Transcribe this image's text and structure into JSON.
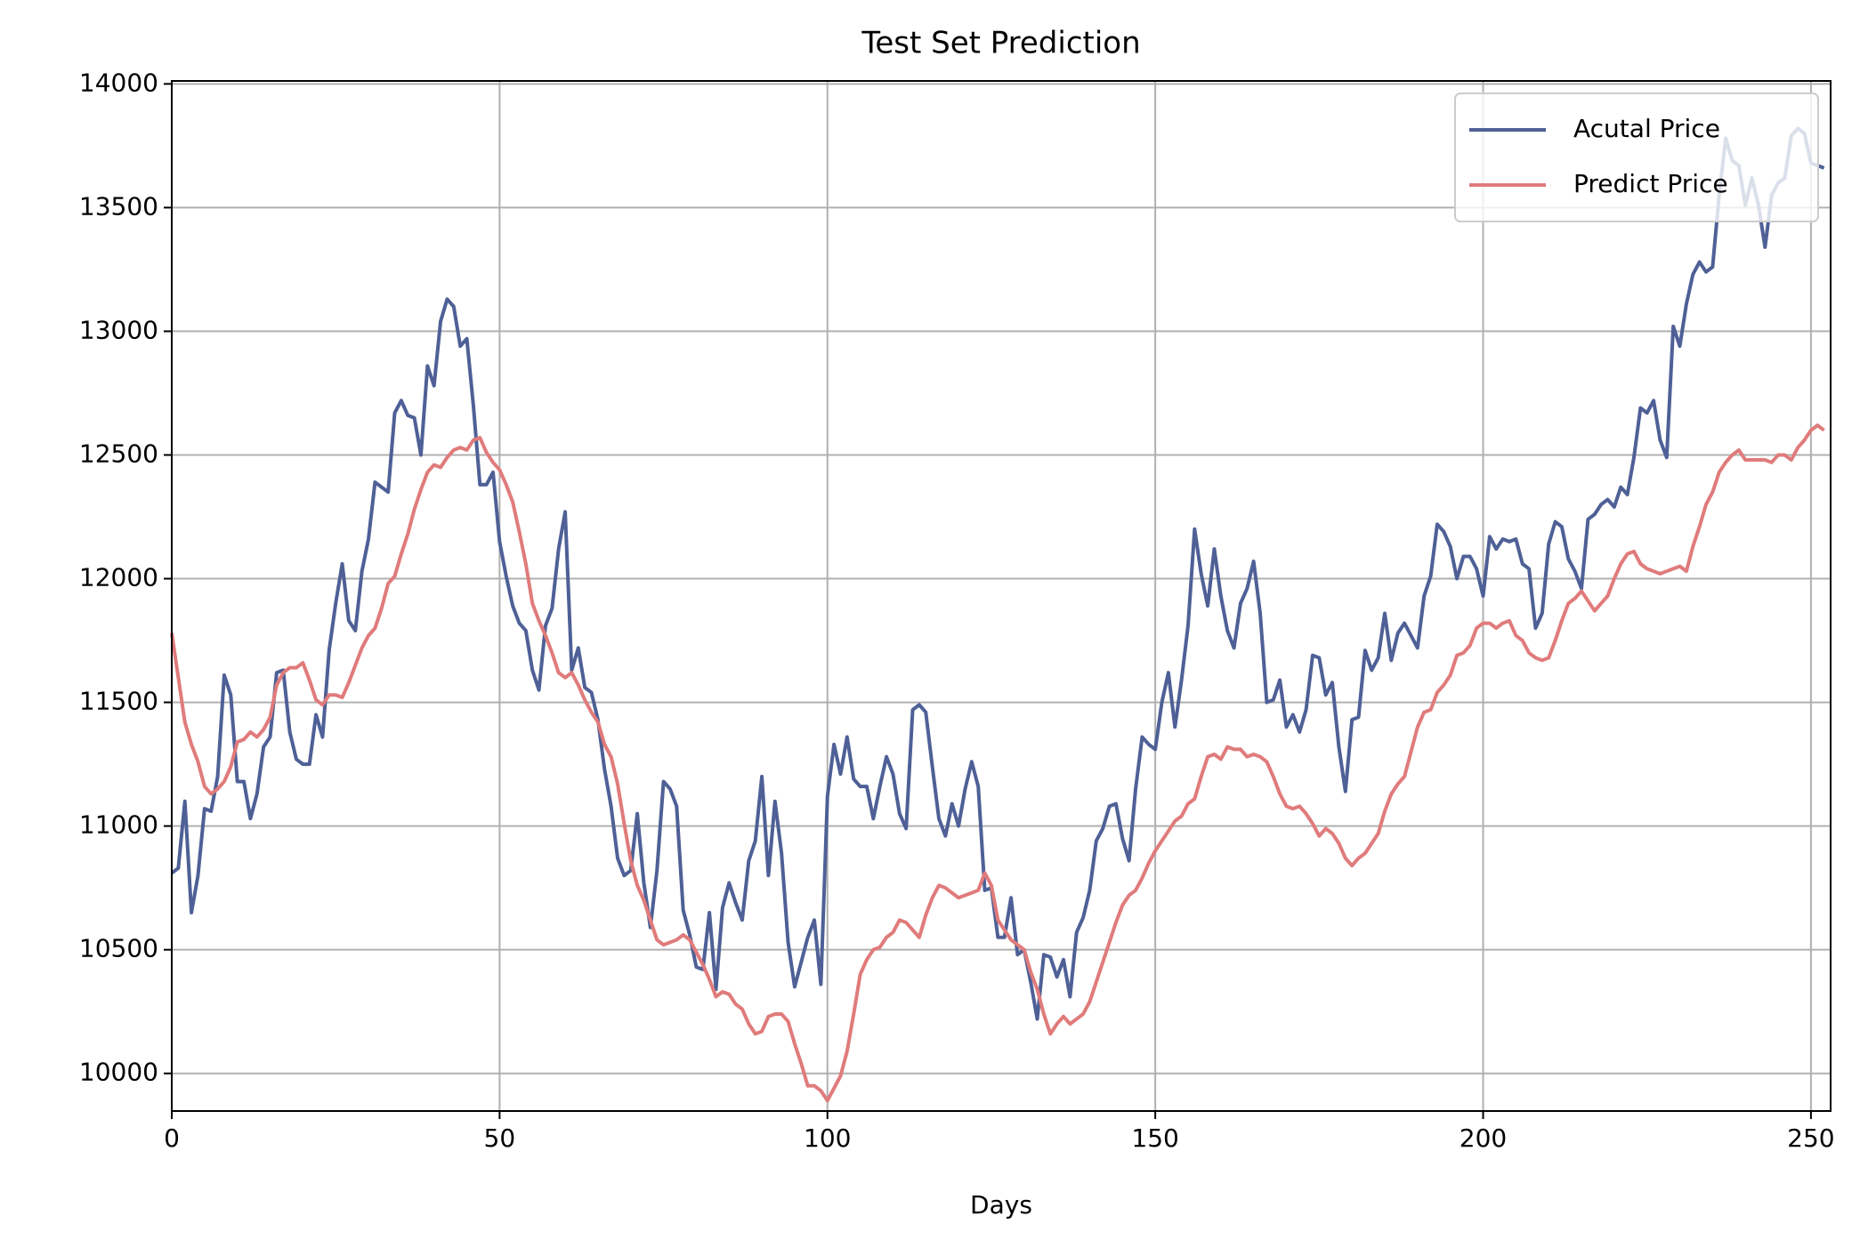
{
  "chart_data": {
    "type": "line",
    "title": "Test Set Prediction",
    "x_label": "Days",
    "xlim": [
      0,
      253
    ],
    "xticks": [
      0,
      50,
      100,
      150,
      200,
      250
    ],
    "ylim": [
      9848,
      14012
    ],
    "yticks": [
      10000,
      10500,
      11000,
      11500,
      12000,
      12500,
      13000,
      13500,
      14000
    ],
    "grid": true,
    "legend": "upper right",
    "series": [
      {
        "name": "Acutal Price",
        "color": "#4e6096",
        "values": [
          10810,
          10830,
          11100,
          10650,
          10800,
          11070,
          11060,
          11200,
          11610,
          11530,
          11180,
          11180,
          11030,
          11130,
          11320,
          11360,
          11620,
          11630,
          11380,
          11270,
          11250,
          11250,
          11450,
          11360,
          11710,
          11900,
          12060,
          11830,
          11790,
          12030,
          12160,
          12390,
          12370,
          12350,
          12670,
          12720,
          12660,
          12650,
          12500,
          12860,
          12780,
          13040,
          13130,
          13100,
          12940,
          12970,
          12700,
          12380,
          12380,
          12430,
          12150,
          12010,
          11890,
          11820,
          11790,
          11630,
          11550,
          11810,
          11880,
          12120,
          12270,
          11630,
          11720,
          11560,
          11540,
          11430,
          11230,
          11080,
          10870,
          10800,
          10820,
          11050,
          10770,
          10590,
          10820,
          11180,
          11150,
          11080,
          10660,
          10560,
          10430,
          10420,
          10650,
          10340,
          10670,
          10770,
          10690,
          10620,
          10860,
          10940,
          11200,
          10800,
          11100,
          10890,
          10530,
          10350,
          10450,
          10550,
          10620,
          10360,
          11120,
          11330,
          11210,
          11360,
          11190,
          11160,
          11160,
          11030,
          11160,
          11280,
          11210,
          11050,
          10990,
          11470,
          11490,
          11460,
          11240,
          11030,
          10960,
          11090,
          11000,
          11150,
          11260,
          11160,
          10740,
          10750,
          10550,
          10550,
          10710,
          10480,
          10500,
          10370,
          10220,
          10480,
          10470,
          10390,
          10460,
          10310,
          10570,
          10630,
          10740,
          10940,
          10990,
          11080,
          11090,
          10950,
          10860,
          11150,
          11360,
          11330,
          11310,
          11500,
          11620,
          11400,
          11590,
          11810,
          12200,
          12020,
          11890,
          12120,
          11930,
          11790,
          11720,
          11900,
          11960,
          12070,
          11860,
          11500,
          11510,
          11590,
          11400,
          11450,
          11380,
          11470,
          11690,
          11680,
          11530,
          11580,
          11320,
          11140,
          11430,
          11440,
          11710,
          11630,
          11680,
          11860,
          11670,
          11780,
          11820,
          11770,
          11720,
          11930,
          12010,
          12220,
          12190,
          12130,
          12000,
          12090,
          12090,
          12040,
          11930,
          12170,
          12120,
          12160,
          12150,
          12160,
          12060,
          12040,
          11800,
          11860,
          12140,
          12230,
          12210,
          12080,
          12030,
          11960,
          12240,
          12260,
          12300,
          12320,
          12290,
          12370,
          12340,
          12490,
          12690,
          12670,
          12720,
          12560,
          12490,
          13020,
          12940,
          13110,
          13230,
          13280,
          13240,
          13260,
          13550,
          13780,
          13690,
          13670,
          13510,
          13620,
          13510,
          13340,
          13550,
          13600,
          13620,
          13790,
          13820,
          13800,
          13680,
          13670,
          13660
        ]
      },
      {
        "name": "Predict Price",
        "color": "#e07b7b",
        "values": [
          11780,
          11600,
          11420,
          11330,
          11260,
          11160,
          11130,
          11150,
          11180,
          11240,
          11340,
          11350,
          11380,
          11360,
          11390,
          11440,
          11570,
          11620,
          11640,
          11640,
          11660,
          11590,
          11510,
          11490,
          11530,
          11530,
          11520,
          11580,
          11650,
          11720,
          11770,
          11800,
          11880,
          11980,
          12010,
          12100,
          12180,
          12280,
          12360,
          12430,
          12460,
          12450,
          12490,
          12520,
          12530,
          12520,
          12560,
          12570,
          12510,
          12470,
          12440,
          12380,
          12310,
          12190,
          12060,
          11900,
          11830,
          11770,
          11700,
          11620,
          11600,
          11620,
          11570,
          11510,
          11460,
          11420,
          11330,
          11280,
          11170,
          11010,
          10860,
          10760,
          10700,
          10620,
          10540,
          10520,
          10530,
          10540,
          10560,
          10540,
          10490,
          10440,
          10380,
          10310,
          10330,
          10320,
          10280,
          10260,
          10200,
          10160,
          10170,
          10230,
          10240,
          10240,
          10210,
          10120,
          10040,
          9950,
          9950,
          9930,
          9890,
          9940,
          9990,
          10090,
          10240,
          10400,
          10460,
          10500,
          10510,
          10550,
          10570,
          10620,
          10610,
          10580,
          10550,
          10640,
          10710,
          10760,
          10750,
          10730,
          10710,
          10720,
          10730,
          10740,
          10810,
          10760,
          10620,
          10580,
          10540,
          10520,
          10500,
          10410,
          10340,
          10240,
          10160,
          10200,
          10230,
          10200,
          10220,
          10240,
          10290,
          10370,
          10450,
          10530,
          10610,
          10680,
          10720,
          10740,
          10790,
          10850,
          10900,
          10940,
          10980,
          11020,
          11040,
          11090,
          11110,
          11200,
          11280,
          11290,
          11270,
          11320,
          11310,
          11310,
          11280,
          11290,
          11280,
          11260,
          11200,
          11130,
          11080,
          11070,
          11080,
          11050,
          11010,
          10960,
          10990,
          10970,
          10930,
          10870,
          10840,
          10870,
          10890,
          10930,
          10970,
          11060,
          11130,
          11170,
          11200,
          11300,
          11400,
          11460,
          11470,
          11540,
          11570,
          11610,
          11690,
          11700,
          11730,
          11800,
          11820,
          11820,
          11800,
          11820,
          11830,
          11770,
          11750,
          11700,
          11680,
          11670,
          11680,
          11750,
          11830,
          11900,
          11920,
          11950,
          11910,
          11870,
          11900,
          11930,
          12000,
          12060,
          12100,
          12110,
          12060,
          12040,
          12030,
          12020,
          12030,
          12040,
          12050,
          12030,
          12130,
          12210,
          12300,
          12350,
          12430,
          12470,
          12500,
          12520,
          12480,
          12480,
          12480,
          12480,
          12470,
          12500,
          12500,
          12480,
          12530,
          12560,
          12600,
          12620,
          12600
        ]
      }
    ]
  }
}
